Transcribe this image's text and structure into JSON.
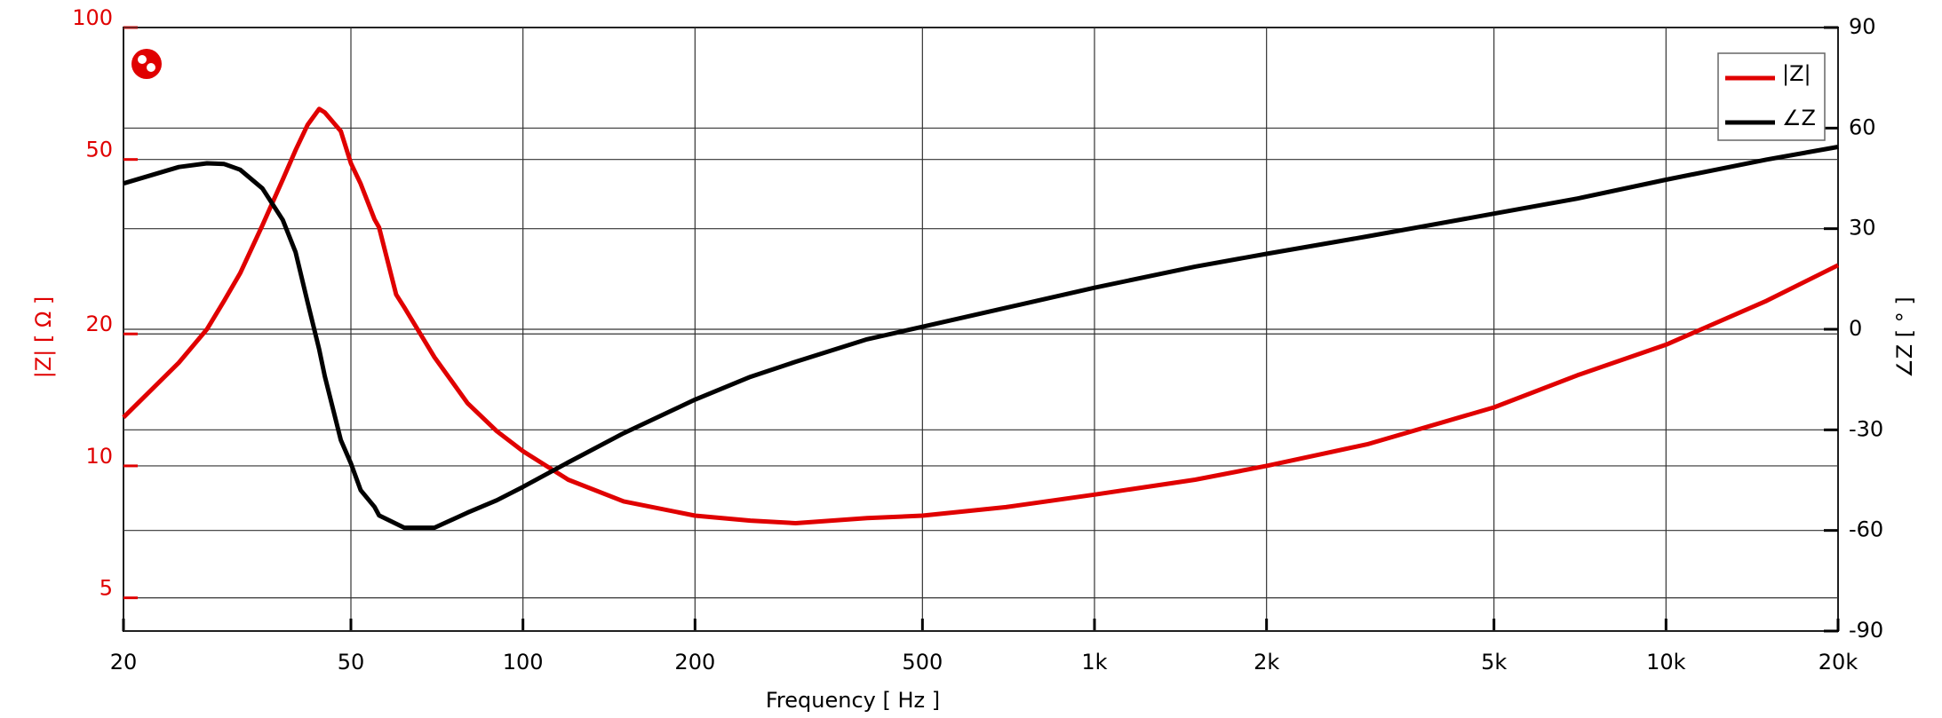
{
  "chart_data": {
    "type": "line",
    "xlabel": "Frequency [ Hz ]",
    "ylabel": "|Z| [ Ω ]",
    "y2label": "∠Z [ ° ]",
    "xscale": "log",
    "yscale": "log",
    "xlim": [
      20,
      20000
    ],
    "xticks": [
      20,
      50,
      100,
      200,
      500,
      {
        "value": 1000,
        "label": "1k"
      },
      {
        "value": 2000,
        "label": "2k"
      },
      {
        "value": 5000,
        "label": "5k"
      },
      {
        "value": 10000,
        "label": "10k"
      },
      {
        "value": 20000,
        "label": "20k"
      }
    ],
    "ylim": [
      4.2,
      100
    ],
    "yticks": [
      5,
      10,
      20,
      50,
      100
    ],
    "y2lim": [
      -90,
      90
    ],
    "y2ticks": [
      -90,
      -60,
      -30,
      0,
      30,
      60,
      90
    ],
    "grid": true,
    "legend": "upper right",
    "x": [
      20,
      25,
      28,
      30,
      32,
      35,
      38,
      40,
      42,
      44,
      45,
      48,
      50,
      52,
      55,
      56,
      60,
      62,
      70,
      80,
      90,
      100,
      120,
      150,
      200,
      250,
      300,
      400,
      500,
      700,
      1000,
      1500,
      2000,
      3000,
      5000,
      7000,
      10000,
      15000,
      20000
    ],
    "series": [
      {
        "name": "|Z|",
        "color": "#e00000",
        "values": [
          12.9,
          17.2,
          20.5,
          23.8,
          27.5,
          35.4,
          45,
          52.5,
          60,
          65.2,
          64,
          58,
          49,
          44,
          36.5,
          35,
          24.6,
          23,
          17.7,
          13.9,
          12,
          10.8,
          9.3,
          8.3,
          7.7,
          7.5,
          7.4,
          7.6,
          7.7,
          8.05,
          8.6,
          9.3,
          10,
          11.2,
          13.6,
          16.1,
          18.9,
          23.8,
          28.7
        ]
      },
      {
        "name": "∠Z",
        "color": "#000000",
        "axis": "y2",
        "values": [
          43.5,
          48.4,
          49.5,
          49.3,
          47.6,
          42,
          32.6,
          23,
          8,
          -6,
          -14,
          -33,
          -40,
          -48,
          -53,
          -55.5,
          -58,
          -59.2,
          -59.2,
          -54.7,
          -51,
          -47,
          -39.7,
          -31,
          -21,
          -14.2,
          -9.7,
          -3,
          0.75,
          6.4,
          12.4,
          18.7,
          22.5,
          27.7,
          34.5,
          39,
          44.6,
          50.6,
          54.4
        ]
      }
    ]
  }
}
